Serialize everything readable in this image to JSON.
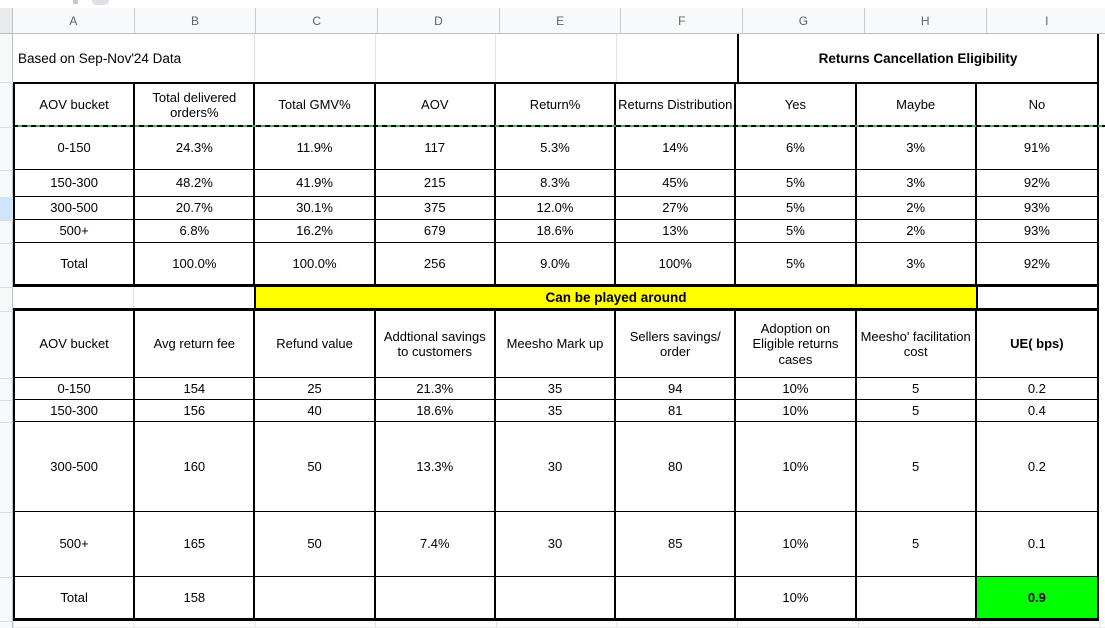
{
  "sheet": {
    "columns": [
      "A",
      "B",
      "C",
      "D",
      "E",
      "F",
      "G",
      "H",
      "I"
    ],
    "note": "Based on Sep-Nov'24 Data",
    "banner": "Returns Cancellation Eligibility",
    "band": "Can be played around"
  },
  "table1": {
    "headers": [
      "AOV bucket",
      "Total delivered orders%",
      "Total GMV%",
      "AOV",
      "Return%",
      "Returns Distribution",
      "Yes",
      "Maybe",
      "No"
    ],
    "rows": [
      [
        "0-150",
        "24.3%",
        "11.9%",
        "117",
        "5.3%",
        "14%",
        "6%",
        "3%",
        "91%"
      ],
      [
        "150-300",
        "48.2%",
        "41.9%",
        "215",
        "8.3%",
        "45%",
        "5%",
        "3%",
        "92%"
      ],
      [
        "300-500",
        "20.7%",
        "30.1%",
        "375",
        "12.0%",
        "27%",
        "5%",
        "2%",
        "93%"
      ],
      [
        "500+",
        "6.8%",
        "16.2%",
        "679",
        "18.6%",
        "13%",
        "5%",
        "2%",
        "93%"
      ],
      [
        "Total",
        "100.0%",
        "100.0%",
        "256",
        "9.0%",
        "100%",
        "5%",
        "3%",
        "92%"
      ]
    ]
  },
  "table2": {
    "headers": [
      "AOV bucket",
      "Avg return fee",
      "Refund value",
      "Addtional savings to customers",
      "Meesho Mark up",
      "Sellers savings/ order",
      "Adoption on Eligible returns cases",
      "Meesho' facilitation cost",
      "UE( bps)"
    ],
    "rows": [
      [
        "0-150",
        "154",
        "25",
        "21.3%",
        "35",
        "94",
        "10%",
        "5",
        "0.2"
      ],
      [
        "150-300",
        "156",
        "40",
        "18.6%",
        "35",
        "81",
        "10%",
        "5",
        "0.4"
      ],
      [
        "300-500",
        "160",
        "50",
        "13.3%",
        "30",
        "80",
        "10%",
        "5",
        "0.2"
      ],
      [
        "500+",
        "165",
        "50",
        "7.4%",
        "30",
        "85",
        "10%",
        "5",
        "0.1"
      ],
      [
        "Total",
        "158",
        "",
        "",
        "",
        "",
        "10%",
        "",
        "0.9"
      ]
    ]
  },
  "colors": {
    "band_bg": "#ffff00",
    "highlight_green": "#00ff00",
    "row_select_blue": "#d2e3fc",
    "pagebreak_green": "#41b05c"
  }
}
